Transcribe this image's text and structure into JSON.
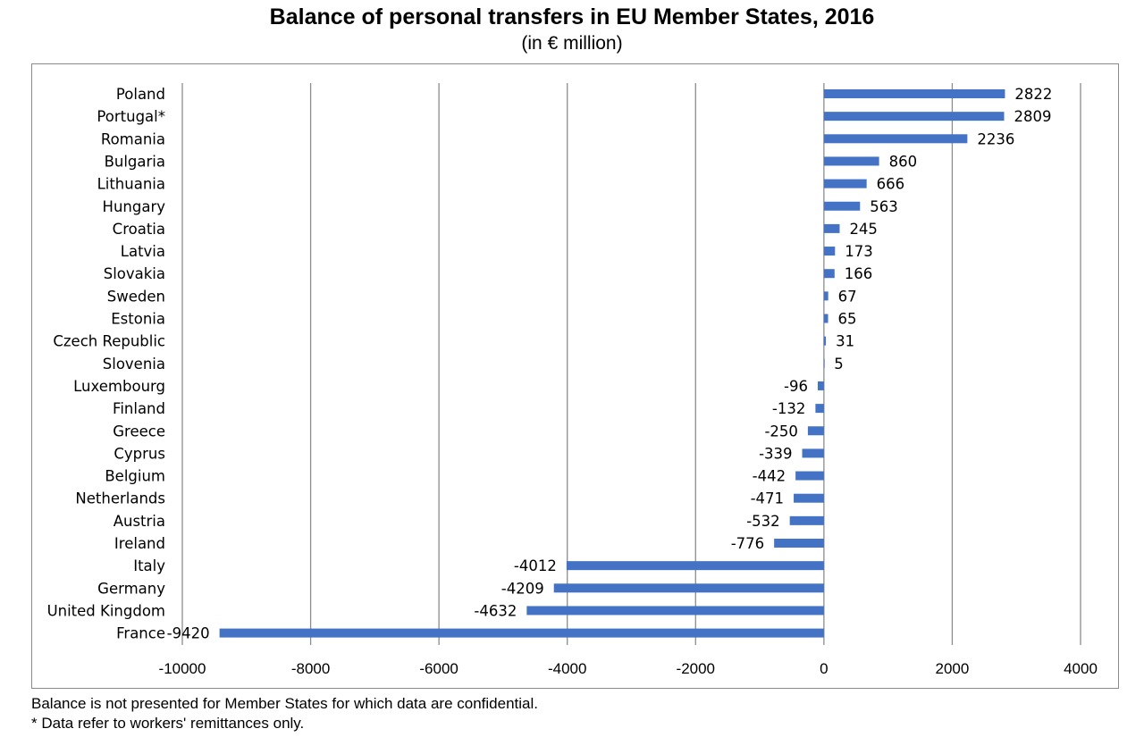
{
  "chart_data": {
    "type": "bar",
    "orientation": "horizontal",
    "title": "Balance of personal transfers in EU Member States, 2016",
    "subtitle": "(in € million)",
    "categories": [
      "Poland",
      "Portugal*",
      "Romania",
      "Bulgaria",
      "Lithuania",
      "Hungary",
      "Croatia",
      "Latvia",
      "Slovakia",
      "Sweden",
      "Estonia",
      "Czech Republic",
      "Slovenia",
      "Luxembourg",
      "Finland",
      "Greece",
      "Cyprus",
      "Belgium",
      "Netherlands",
      "Austria",
      "Ireland",
      "Italy",
      "Germany",
      "United Kingdom",
      "France"
    ],
    "values": [
      2822,
      2809,
      2236,
      860,
      666,
      563,
      245,
      173,
      166,
      67,
      65,
      31,
      5,
      -96,
      -132,
      -250,
      -339,
      -442,
      -471,
      -532,
      -776,
      -4012,
      -4209,
      -4632,
      -9420
    ],
    "value_labels": [
      "2822",
      "2809",
      "2236",
      "860",
      "666",
      "563",
      "245",
      "173",
      "166",
      "67",
      "65",
      "31",
      "5",
      "-96",
      "-132",
      "-250",
      "-339",
      "-442",
      "-471",
      "-532",
      "-776",
      "-4012",
      "-4209",
      "-4632",
      "-9420"
    ],
    "xlim": [
      -10000,
      4000
    ],
    "xticks": [
      -10000,
      -8000,
      -6000,
      -4000,
      -2000,
      0,
      2000,
      4000
    ],
    "xtick_labels": [
      "-10000",
      "-8000",
      "-6000",
      "-4000",
      "-2000",
      "0",
      "2000",
      "4000"
    ],
    "grid": "vertical",
    "legend": "none",
    "bar_color": "#4472c4",
    "grid_color": "#8c8c8c"
  },
  "footnotes": [
    "Balance is not presented for Member States for which data are confidential.",
    "* Data refer to workers' remittances only."
  ]
}
